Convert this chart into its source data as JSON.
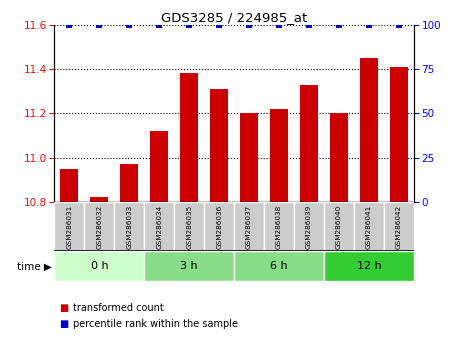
{
  "title": "GDS3285 / 224985_at",
  "samples": [
    "GSM286031",
    "GSM286032",
    "GSM286033",
    "GSM286034",
    "GSM286035",
    "GSM286036",
    "GSM286037",
    "GSM286038",
    "GSM286039",
    "GSM286040",
    "GSM286041",
    "GSM286042"
  ],
  "bar_values": [
    10.95,
    10.82,
    10.97,
    11.12,
    11.38,
    11.31,
    11.2,
    11.22,
    11.33,
    11.2,
    11.45,
    11.41
  ],
  "percentile_values": [
    100,
    100,
    100,
    100,
    100,
    100,
    100,
    100,
    100,
    100,
    100,
    100
  ],
  "bar_color": "#cc0000",
  "percentile_color": "#0000cc",
  "ylim_left": [
    10.8,
    11.6
  ],
  "ylim_right": [
    0,
    100
  ],
  "yticks_left": [
    10.8,
    11.0,
    11.2,
    11.4,
    11.6
  ],
  "yticks_right": [
    0,
    25,
    50,
    75,
    100
  ],
  "groups": [
    {
      "label": "0 h",
      "start": 0,
      "end": 3,
      "color": "#ccffcc"
    },
    {
      "label": "3 h",
      "start": 3,
      "end": 6,
      "color": "#88dd88"
    },
    {
      "label": "6 h",
      "start": 6,
      "end": 9,
      "color": "#88dd88"
    },
    {
      "label": "12 h",
      "start": 9,
      "end": 12,
      "color": "#33cc33"
    }
  ],
  "legend_bar_label": "transformed count",
  "legend_pct_label": "percentile rank within the sample",
  "time_label": "time",
  "sample_box_color": "#cccccc"
}
